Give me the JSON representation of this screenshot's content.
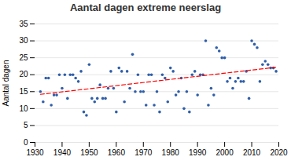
{
  "chart_data": {
    "type": "scatter",
    "title": "Aantal dagen extreme neerslag",
    "ylabel": "Aantal dagen",
    "color": "#2E5EAA",
    "x": [
      1932,
      1933,
      1934,
      1935,
      1936,
      1937,
      1938,
      1939,
      1940,
      1941,
      1942,
      1943,
      1944,
      1945,
      1946,
      1947,
      1948,
      1949,
      1950,
      1951,
      1952,
      1953,
      1954,
      1955,
      1956,
      1957,
      1958,
      1959,
      1960,
      1961,
      1962,
      1963,
      1964,
      1965,
      1966,
      1967,
      1968,
      1969,
      1970,
      1971,
      1972,
      1973,
      1974,
      1975,
      1976,
      1977,
      1978,
      1979,
      1980,
      1981,
      1982,
      1983,
      1984,
      1985,
      1986,
      1987,
      1988,
      1989,
      1990,
      1991,
      1992,
      1993,
      1994,
      1995,
      1996,
      1997,
      1998,
      1999,
      2000,
      2001,
      2002,
      2003,
      2004,
      2005,
      2006,
      2007,
      2008,
      2009,
      2010,
      2011,
      2012,
      2013,
      2014,
      2015,
      2016,
      2017,
      2018,
      2019
    ],
    "values": [
      15,
      12,
      19,
      19,
      11,
      14,
      14,
      20,
      16,
      20,
      13,
      20,
      20,
      19,
      18,
      21,
      9,
      8,
      23,
      13,
      12,
      13,
      17,
      13,
      13,
      16,
      21,
      16,
      9,
      22,
      21,
      12,
      21,
      16,
      26,
      15,
      20,
      15,
      15,
      11,
      20,
      20,
      11,
      15,
      9,
      20,
      19,
      12,
      22,
      21,
      14,
      15,
      19,
      10,
      15,
      9,
      20,
      21,
      14,
      20,
      20,
      30,
      11,
      16,
      14,
      28,
      27,
      25,
      25,
      18,
      19,
      16,
      18,
      19,
      18,
      18,
      21,
      13,
      30,
      29,
      28,
      18,
      23,
      24,
      23,
      22,
      22,
      21
    ],
    "trend": {
      "x": [
        1932,
        2019
      ],
      "values": [
        14.2,
        22.2
      ],
      "color": "#FF0000",
      "line_style": "dashed"
    },
    "xlim": [
      1930,
      2020
    ],
    "ylim": [
      0,
      35
    ],
    "xticks": [
      1930,
      1940,
      1950,
      1960,
      1970,
      1980,
      1990,
      2000,
      2010,
      2020
    ],
    "yticks": [
      0,
      5,
      10,
      15,
      20,
      25,
      30,
      35
    ],
    "grid": true
  }
}
